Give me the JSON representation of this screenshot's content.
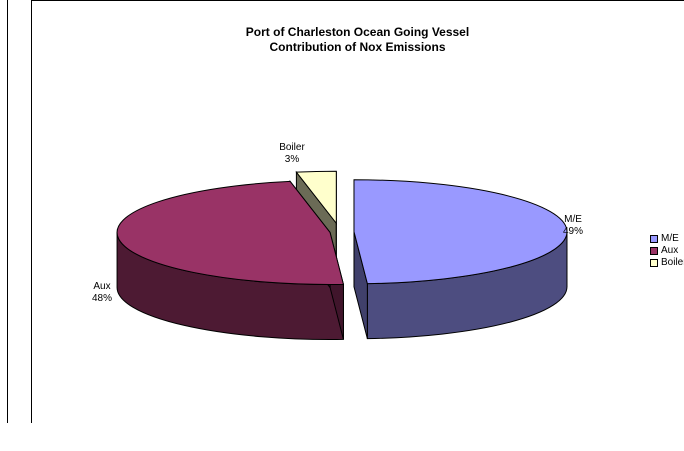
{
  "chart_data": {
    "type": "pie",
    "title_line1": "Port of Charleston Ocean Going Vessel",
    "title_line2": "Contribution of Nox Emissions",
    "three_d": true,
    "legend_placement": "right",
    "series": [
      {
        "name": "M/E",
        "value": 49,
        "label": "49%",
        "color": "#9999ff"
      },
      {
        "name": "Aux",
        "value": 48,
        "label": "48%",
        "color": "#993366"
      },
      {
        "name": "Boiler",
        "value": 3,
        "label": "3%",
        "color": "#ffffcc"
      }
    ]
  }
}
